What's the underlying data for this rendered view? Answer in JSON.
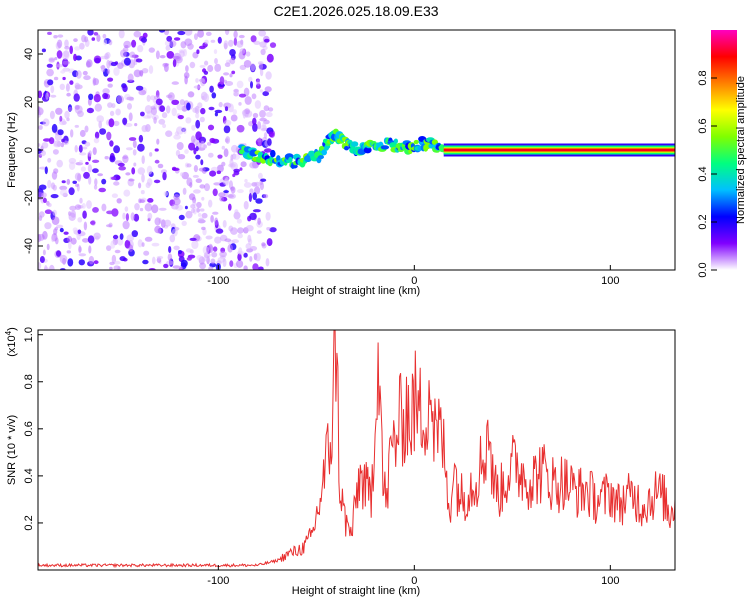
{
  "figure_title": "C2E1.2026.025.18.09.E33",
  "chart_data": [
    {
      "type": "heatmap",
      "title": "C2E1.2026.025.18.09.E33",
      "xlabel": "Height of straight line (km)",
      "ylabel": "Frequency (Hz)",
      "xlim": [
        -192,
        133
      ],
      "ylim": [
        -50,
        50
      ],
      "x_ticks": [
        -100,
        0,
        100
      ],
      "x_tick_labels": [
        "-100",
        "0",
        "100"
      ],
      "y_ticks": [
        -40,
        -20,
        0,
        20,
        40
      ],
      "y_tick_labels": [
        "-40",
        "-20",
        "0",
        "20",
        "40"
      ],
      "colorbar": {
        "label": "Normalized spectral amplitude",
        "range": [
          0,
          1
        ],
        "ticks": [
          0.0,
          0.2,
          0.4,
          0.6,
          0.8
        ],
        "tick_labels": [
          "0.0",
          "0.2",
          "0.4",
          "0.6",
          "0.8"
        ],
        "colormap": [
          "#ffffff",
          "#8000ff",
          "#0000ff",
          "#00c0ff",
          "#00ff80",
          "#80ff00",
          "#ffff00",
          "#ff8000",
          "#ff0000",
          "#ff00c0"
        ]
      },
      "regions": [
        {
          "name": "noise",
          "x_range": [
            -192,
            -72
          ],
          "freq_range": [
            -50,
            50
          ],
          "amplitude": 0.2
        },
        {
          "name": "wandering-track",
          "x_range": [
            -88,
            15
          ],
          "freq_center": [
            0,
            3
          ],
          "amplitude": 0.45
        },
        {
          "name": "steady-line",
          "x_range": [
            15,
            133
          ],
          "freq_center": 0,
          "amplitude": 0.9
        }
      ],
      "track_points": [
        {
          "x": -88,
          "f": 0
        },
        {
          "x": -82,
          "f": -2
        },
        {
          "x": -75,
          "f": -3
        },
        {
          "x": -68,
          "f": -4
        },
        {
          "x": -62,
          "f": -5
        },
        {
          "x": -55,
          "f": -4
        },
        {
          "x": -48,
          "f": -2
        },
        {
          "x": -44,
          "f": 4
        },
        {
          "x": -40,
          "f": 6
        },
        {
          "x": -34,
          "f": 2
        },
        {
          "x": -28,
          "f": 0
        },
        {
          "x": -22,
          "f": 1
        },
        {
          "x": -15,
          "f": 2
        },
        {
          "x": -8,
          "f": 2
        },
        {
          "x": -2,
          "f": 1
        },
        {
          "x": 4,
          "f": 3
        },
        {
          "x": 10,
          "f": 2
        },
        {
          "x": 15,
          "f": 0
        }
      ]
    },
    {
      "type": "line",
      "xlabel": "Height of straight line (km)",
      "ylabel": "SNR (10 * v/v)",
      "y_multiplier": "(x10",
      "y_multiplier_exp": "4",
      "y_multiplier_close": ")",
      "xlim": [
        -192,
        133
      ],
      "ylim": [
        0,
        1.02
      ],
      "x_ticks": [
        -100,
        0,
        100
      ],
      "x_tick_labels": [
        "-100",
        "0",
        "100"
      ],
      "y_ticks": [
        0.2,
        0.4,
        0.6,
        0.8,
        1.0
      ],
      "y_tick_labels": [
        "0.2",
        "0.4",
        "0.6",
        "0.8",
        "1.0"
      ],
      "color": "#e83030",
      "series": [
        {
          "name": "SNR",
          "x": [
            -192,
            -180,
            -170,
            -160,
            -150,
            -140,
            -130,
            -120,
            -110,
            -100,
            -90,
            -80,
            -70,
            -64,
            -60,
            -56,
            -52,
            -48,
            -45,
            -42,
            -40,
            -38,
            -35,
            -32,
            -28,
            -25,
            -22,
            -20,
            -18,
            -16,
            -14,
            -12,
            -10,
            -8,
            -6,
            -4,
            -2,
            0,
            2,
            4,
            6,
            8,
            10,
            12,
            14,
            16,
            18,
            20,
            22,
            25,
            28,
            32,
            36,
            38,
            40,
            42,
            44,
            48,
            52,
            56,
            60,
            64,
            68,
            72,
            76,
            80,
            84,
            88,
            92,
            96,
            100,
            104,
            108,
            112,
            116,
            120,
            124,
            128,
            130,
            133
          ],
          "y": [
            0.02,
            0.02,
            0.02,
            0.02,
            0.02,
            0.02,
            0.02,
            0.02,
            0.02,
            0.02,
            0.02,
            0.02,
            0.04,
            0.07,
            0.08,
            0.1,
            0.15,
            0.3,
            0.45,
            0.6,
            1.02,
            0.35,
            0.2,
            0.15,
            0.4,
            0.35,
            0.3,
            0.7,
            0.98,
            0.35,
            0.3,
            0.5,
            0.55,
            0.6,
            0.65,
            0.7,
            0.62,
            0.72,
            0.65,
            0.68,
            0.7,
            0.8,
            0.6,
            0.55,
            0.6,
            0.4,
            0.25,
            0.45,
            0.35,
            0.3,
            0.35,
            0.4,
            0.5,
            0.62,
            0.38,
            0.35,
            0.33,
            0.42,
            0.45,
            0.4,
            0.38,
            0.42,
            0.4,
            0.36,
            0.38,
            0.35,
            0.33,
            0.34,
            0.3,
            0.3,
            0.33,
            0.28,
            0.3,
            0.32,
            0.27,
            0.3,
            0.33,
            0.3,
            0.22,
            0.3
          ]
        }
      ]
    }
  ]
}
